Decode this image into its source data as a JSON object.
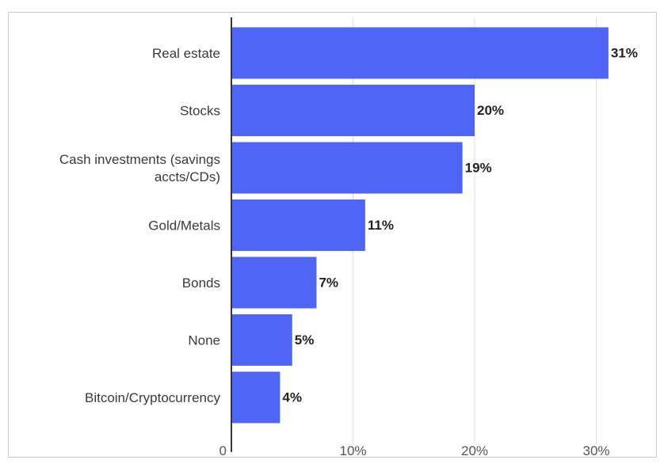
{
  "chart_data": {
    "type": "bar",
    "orientation": "horizontal",
    "categories": [
      "Real estate",
      "Stocks",
      "Cash investments (savings accts/CDs)",
      "Gold/Metals",
      "Bonds",
      "None",
      "Bitcoin/Cryptocurrency"
    ],
    "category_lines": [
      [
        "Real estate"
      ],
      [
        "Stocks"
      ],
      [
        "Cash investments (savings",
        "accts/CDs)"
      ],
      [
        "Gold/Metals"
      ],
      [
        "Bonds"
      ],
      [
        "None"
      ],
      [
        "Bitcoin/Cryptocurrency"
      ]
    ],
    "values": [
      31,
      20,
      19,
      11,
      7,
      5,
      4
    ],
    "value_labels": [
      "31%",
      "20%",
      "19%",
      "11%",
      "7%",
      "5%",
      "4%"
    ],
    "xlim": [
      0,
      35
    ],
    "ticks": [
      0,
      10,
      20,
      30
    ],
    "tick_labels": [
      "0",
      "10%",
      "20%",
      "30%"
    ],
    "title": "",
    "xlabel": "",
    "ylabel": "",
    "grid": true,
    "bar_color": "#4f65f5",
    "axis_color": "#333333",
    "grid_color": "#dcdde3"
  }
}
